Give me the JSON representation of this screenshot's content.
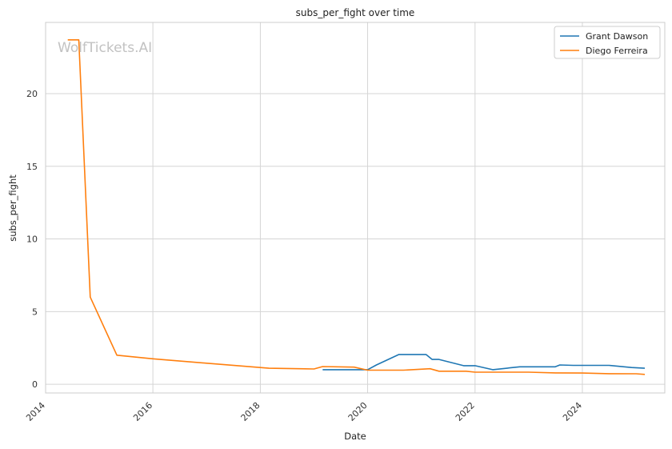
{
  "chart_data": {
    "type": "line",
    "title": "subs_per_fight over time",
    "xlabel": "Date",
    "ylabel": "subs_per_fight",
    "watermark": "WolfTickets.AI",
    "x_ticks": [
      "2014",
      "2016",
      "2018",
      "2020",
      "2022",
      "2024"
    ],
    "y_ticks": [
      "0",
      "5",
      "10",
      "15",
      "20"
    ],
    "xlim": [
      "2014-01-01",
      "2025-07-15"
    ],
    "ylim": [
      -0.6,
      24.9
    ],
    "grid": true,
    "legend_position": "top-right",
    "series": [
      {
        "name": "Grant Dawson",
        "color": "#1f77b4",
        "points": [
          [
            "2019-03-01",
            1.0
          ],
          [
            "2020-01-01",
            1.0
          ],
          [
            "2020-03-01",
            1.33
          ],
          [
            "2020-08-01",
            2.05
          ],
          [
            "2021-02-01",
            2.05
          ],
          [
            "2021-03-15",
            1.71
          ],
          [
            "2021-05-01",
            1.71
          ],
          [
            "2021-10-15",
            1.28
          ],
          [
            "2022-01-01",
            1.28
          ],
          [
            "2022-05-01",
            1.0
          ],
          [
            "2022-11-01",
            1.2
          ],
          [
            "2023-07-01",
            1.2
          ],
          [
            "2023-08-01",
            1.33
          ],
          [
            "2023-11-01",
            1.3
          ],
          [
            "2024-07-01",
            1.3
          ],
          [
            "2024-12-01",
            1.15
          ],
          [
            "2025-03-01",
            1.1
          ]
        ]
      },
      {
        "name": "Diego Ferreira",
        "color": "#ff7f0e",
        "points": [
          [
            "2014-06-01",
            23.7
          ],
          [
            "2014-08-15",
            23.7
          ],
          [
            "2014-11-01",
            6.0
          ],
          [
            "2015-05-01",
            2.0
          ],
          [
            "2016-01-01",
            1.75
          ],
          [
            "2017-01-01",
            1.45
          ],
          [
            "2018-03-01",
            1.1
          ],
          [
            "2019-01-01",
            1.05
          ],
          [
            "2019-03-01",
            1.22
          ],
          [
            "2019-10-01",
            1.18
          ],
          [
            "2020-01-01",
            0.97
          ],
          [
            "2020-09-01",
            0.97
          ],
          [
            "2021-03-01",
            1.07
          ],
          [
            "2021-05-01",
            0.9
          ],
          [
            "2021-11-01",
            0.9
          ],
          [
            "2022-01-01",
            0.83
          ],
          [
            "2023-01-01",
            0.83
          ],
          [
            "2023-07-01",
            0.78
          ],
          [
            "2024-01-01",
            0.77
          ],
          [
            "2024-07-01",
            0.73
          ],
          [
            "2025-01-01",
            0.72
          ],
          [
            "2025-03-01",
            0.68
          ]
        ]
      }
    ]
  }
}
